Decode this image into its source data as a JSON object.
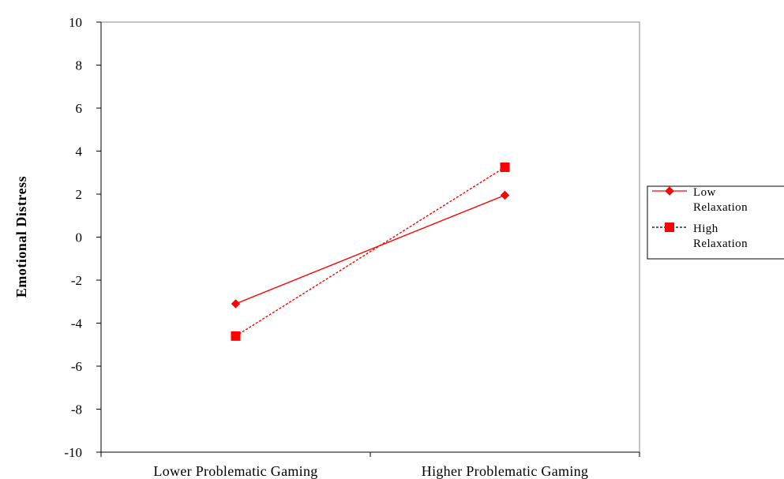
{
  "chart_data": {
    "type": "line",
    "title": "",
    "xlabel": "",
    "ylabel": "Emotional Distress",
    "categories": [
      "Lower Problematic Gaming",
      "Higher Problematic Gaming"
    ],
    "ylim": [
      -10,
      10
    ],
    "yticks": [
      10,
      8,
      6,
      4,
      2,
      0,
      -2,
      -4,
      -6,
      -8,
      -10
    ],
    "grid": false,
    "legend_position": "right",
    "series": [
      {
        "name": "Low Relaxation",
        "legend_lines": [
          "Low",
          "Relaxation"
        ],
        "values": [
          -3.1,
          1.95
        ],
        "marker": "diamond",
        "line_style": "solid",
        "color": "#ff0000"
      },
      {
        "name": "High Relaxation",
        "legend_lines": [
          "High",
          "Relaxation"
        ],
        "values": [
          -4.6,
          3.25
        ],
        "marker": "square",
        "line_style": "dashed",
        "color": "#ff0000"
      }
    ]
  }
}
